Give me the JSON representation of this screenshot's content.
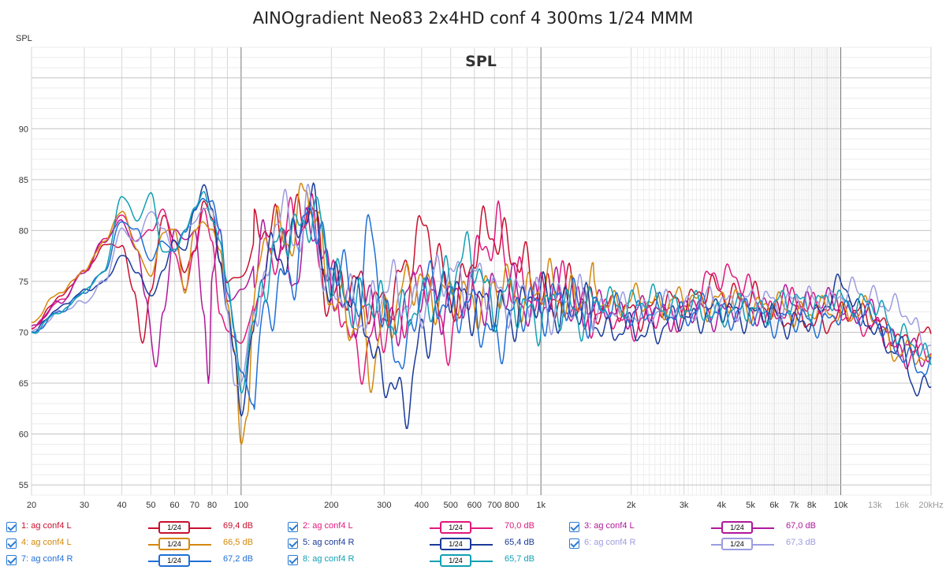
{
  "header": {
    "title": "AINOgradient Neo83 2x4HD conf 4 300ms 1/24 MMM"
  },
  "chart_data": {
    "type": "line",
    "title": "AINOgradient Neo83 2x4HD conf 4 300ms 1/24 MMM",
    "plot_label": "SPL",
    "ylabel": "SPL",
    "xlabel_unit": "Hz",
    "x_scale": "log",
    "xlim": [
      20,
      20000
    ],
    "ylim": [
      54,
      98
    ],
    "grid": true,
    "y_ticks": [
      55,
      60,
      65,
      70,
      75,
      80,
      85,
      90
    ],
    "y_tick_labels": [
      "55",
      "60",
      "65",
      "70",
      "75",
      "80",
      "85",
      "90"
    ],
    "x_ticks": [
      20,
      30,
      40,
      50,
      60,
      70,
      80,
      100,
      200,
      300,
      400,
      500,
      600,
      700,
      800,
      1000,
      2000,
      3000,
      4000,
      5000,
      6000,
      7000,
      8000,
      10000,
      13000,
      16000,
      20000
    ],
    "x_tick_labels": [
      "20",
      "30",
      "40",
      "50",
      "60",
      "70",
      "80",
      "100",
      "200",
      "300",
      "400",
      "500",
      "600",
      "700",
      "800",
      "1k",
      "2k",
      "3k",
      "4k",
      "5k",
      "6k",
      "7k",
      "8k",
      "10k",
      "13k",
      "16k",
      "20kHz"
    ],
    "x_tick_grey": [
      "13k",
      "16k",
      "20kHz"
    ],
    "series": [
      {
        "name": "1: ag conf4 L",
        "color": "#c8102e",
        "smoothing": "1/24",
        "level": "69,4 dB",
        "x": [
          20,
          25,
          30,
          35,
          40,
          44,
          47,
          50,
          55,
          60,
          65,
          70,
          75,
          80,
          85,
          90,
          100,
          120,
          150,
          170,
          200,
          250,
          300,
          400,
          500,
          700,
          1000,
          2000,
          4000,
          8000,
          12000,
          16000,
          20000
        ],
        "y": [
          70.5,
          73.5,
          76,
          78.5,
          78.5,
          74,
          69,
          74,
          81.5,
          79,
          76,
          78,
          83,
          81,
          77,
          75,
          75.5,
          81,
          80,
          83,
          73,
          75,
          72,
          80,
          74,
          80,
          74,
          72,
          74,
          71,
          72,
          69,
          70
        ]
      },
      {
        "name": "2: ag conf4 L",
        "color": "#e0187c",
        "smoothing": "1/24",
        "level": "70,0 dB",
        "x": [
          20,
          25,
          30,
          35,
          40,
          45,
          50,
          55,
          60,
          65,
          70,
          75,
          80,
          85,
          90,
          100,
          120,
          150,
          170,
          200,
          250,
          300,
          400,
          500,
          700,
          720,
          800,
          1000,
          2000,
          3000,
          4000,
          6000,
          8000,
          12000,
          16000,
          20000
        ],
        "y": [
          70.5,
          73,
          76,
          79,
          81.5,
          79,
          80,
          82,
          78,
          74,
          78,
          82,
          79,
          72,
          70,
          69,
          76,
          80,
          82,
          74,
          68,
          70,
          75,
          70,
          80,
          81,
          74,
          74,
          71,
          72,
          76,
          72,
          73,
          71,
          68,
          68
        ]
      },
      {
        "name": "3: ag conf4 L",
        "color": "#b0189a",
        "smoothing": "1/24",
        "level": "67,0 dB",
        "x": [
          20,
          25,
          30,
          35,
          40,
          45,
          48,
          52,
          55,
          60,
          65,
          70,
          75,
          78,
          80,
          85,
          90,
          100,
          120,
          150,
          170,
          200,
          250,
          300,
          400,
          500,
          700,
          1000,
          2000,
          4000,
          8000,
          12000,
          16000,
          20000
        ],
        "y": [
          70.5,
          73,
          76,
          79,
          81,
          78,
          73.5,
          66.5,
          72,
          80,
          79,
          80,
          72,
          65,
          76,
          80,
          73,
          74,
          79,
          76,
          81,
          74,
          72,
          71,
          74,
          73,
          74,
          73,
          72,
          72,
          73,
          72,
          69,
          67
        ]
      },
      {
        "name": "4: ag conf4 L",
        "color": "#d4880c",
        "smoothing": "1/24",
        "level": "66,5 dB",
        "x": [
          20,
          25,
          30,
          35,
          40,
          45,
          50,
          55,
          60,
          65,
          70,
          75,
          80,
          85,
          90,
          95,
          100,
          105,
          110,
          120,
          150,
          165,
          170,
          200,
          250,
          270,
          300,
          400,
          500,
          700,
          1000,
          2000,
          4000,
          8000,
          12000,
          16000,
          20000
        ],
        "y": [
          71,
          74,
          76,
          79,
          82,
          78,
          75.5,
          80,
          80,
          74,
          80,
          81,
          80,
          78,
          73,
          68,
          59,
          62,
          72,
          79,
          80,
          85,
          82,
          74,
          70,
          66,
          72,
          75,
          73,
          74,
          74,
          73,
          73,
          72,
          72,
          68,
          67
        ]
      },
      {
        "name": "5: ag conf4 R",
        "color": "#1a3a9a",
        "smoothing": "1/24",
        "level": "65,4 dB",
        "x": [
          20,
          25,
          30,
          35,
          40,
          45,
          50,
          55,
          60,
          65,
          70,
          75,
          80,
          85,
          90,
          95,
          100,
          110,
          120,
          150,
          170,
          200,
          250,
          300,
          350,
          400,
          500,
          700,
          1000,
          2000,
          4000,
          8000,
          10000,
          12000,
          16000,
          18000,
          20000
        ],
        "y": [
          70,
          72.5,
          74,
          75,
          77.5,
          76,
          73.5,
          76,
          79,
          78,
          82,
          84.5,
          82,
          77,
          72,
          68,
          62,
          70,
          77,
          79,
          82,
          75,
          72,
          66,
          62,
          70,
          74,
          72,
          73,
          70,
          72,
          71,
          75,
          71,
          68,
          64,
          66
        ]
      },
      {
        "name": "6: ag conf4 R",
        "color": "#9c9ce0",
        "smoothing": "1/24",
        "level": "67,3 dB",
        "x": [
          20,
          25,
          30,
          35,
          40,
          45,
          50,
          55,
          60,
          65,
          70,
          75,
          80,
          85,
          90,
          95,
          100,
          110,
          120,
          135,
          150,
          170,
          200,
          250,
          300,
          400,
          500,
          700,
          1000,
          2000,
          4000,
          8000,
          12000,
          16000,
          20000
        ],
        "y": [
          70,
          72,
          73,
          75,
          80,
          79,
          82,
          80,
          78,
          80,
          81,
          82,
          82,
          80,
          72,
          65,
          65,
          72,
          74,
          84,
          78,
          82,
          74,
          72,
          74,
          73,
          76,
          74,
          73,
          72,
          73,
          73,
          74,
          72,
          69
        ]
      },
      {
        "name": "7: ag conf4 R",
        "color": "#1f6fd6",
        "smoothing": "1/24",
        "level": "67,2 dB",
        "x": [
          20,
          25,
          30,
          35,
          40,
          45,
          50,
          55,
          60,
          65,
          70,
          75,
          80,
          85,
          90,
          100,
          110,
          120,
          150,
          170,
          200,
          250,
          270,
          300,
          350,
          400,
          500,
          700,
          1000,
          2000,
          4000,
          8000,
          12000,
          16000,
          20000
        ],
        "y": [
          70,
          72,
          74,
          76,
          81,
          80,
          77,
          79,
          78,
          80,
          82,
          83,
          83,
          80,
          74,
          66,
          63,
          73,
          75,
          83,
          76,
          74,
          81,
          70,
          68,
          74,
          73,
          70,
          73,
          72,
          72,
          71,
          72,
          68,
          66
        ]
      },
      {
        "name": "8: ag conf4 R",
        "color": "#12a0b4",
        "smoothing": "1/24",
        "level": "65,7 dB",
        "x": [
          20,
          25,
          30,
          35,
          40,
          45,
          50,
          55,
          60,
          65,
          70,
          75,
          80,
          85,
          90,
          95,
          100,
          110,
          120,
          150,
          170,
          180,
          200,
          250,
          300,
          400,
          500,
          600,
          700,
          1000,
          2000,
          4000,
          8000,
          12000,
          16000,
          20000
        ],
        "y": [
          70,
          72,
          74,
          76,
          83.5,
          81,
          83.5,
          78,
          78,
          80,
          82,
          84,
          81,
          79,
          75,
          70,
          64,
          71,
          76,
          80,
          82,
          81,
          75,
          73,
          72,
          72,
          76,
          77,
          73,
          72,
          73,
          72,
          73,
          73,
          70,
          67
        ]
      }
    ]
  },
  "legend": {
    "items": [
      {
        "label": "1: ag conf4 L",
        "smoothing": "1/24",
        "level": "69,4 dB"
      },
      {
        "label": "2: ag conf4 L",
        "smoothing": "1/24",
        "level": "70,0 dB"
      },
      {
        "label": "3: ag conf4 L",
        "smoothing": "1/24",
        "level": "67,0 dB"
      },
      {
        "label": "4: ag conf4 L",
        "smoothing": "1/24",
        "level": "66,5 dB"
      },
      {
        "label": "5: ag conf4 R",
        "smoothing": "1/24",
        "level": "65,4 dB"
      },
      {
        "label": "6: ag conf4 R",
        "smoothing": "1/24",
        "level": "67,3 dB"
      },
      {
        "label": "7: ag conf4 R",
        "smoothing": "1/24",
        "level": "67,2 dB"
      },
      {
        "label": "8: ag conf4 R",
        "smoothing": "1/24",
        "level": "65,7 dB"
      }
    ]
  }
}
